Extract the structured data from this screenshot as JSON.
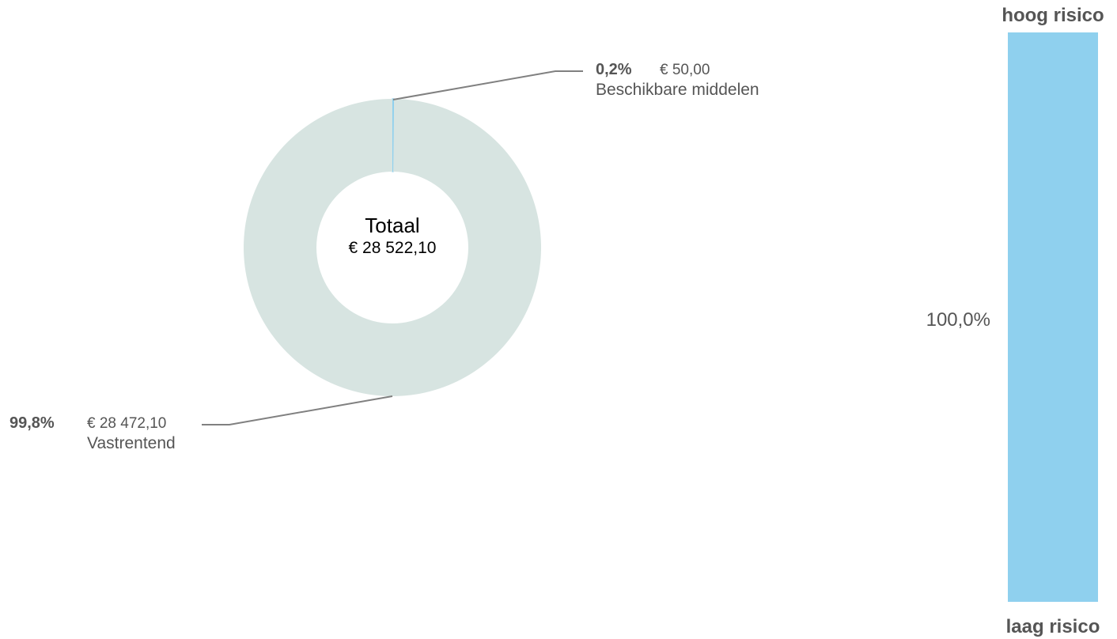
{
  "chart_data": [
    {
      "type": "pie",
      "donut": true,
      "center_label": {
        "title": "Totaal",
        "value": "€ 28 522,10"
      },
      "slices": [
        {
          "name": "Beschikbare middelen",
          "percent_label": "0,2%",
          "amount_label": "€ 50,00",
          "value": 50.0,
          "color": "#8fd0ee"
        },
        {
          "name": "Vastrentend",
          "percent_label": "99,8%",
          "amount_label": "€ 28 472,10",
          "value": 28472.1,
          "color": "#d7e4e1"
        }
      ]
    },
    {
      "type": "bar",
      "stacked": true,
      "top_label": "hoog risico",
      "bottom_label": "laag risico",
      "segments": [
        {
          "label": "100,0%",
          "value": 100.0,
          "color": "#8fd0ee"
        }
      ],
      "ylim": [
        0,
        100
      ]
    }
  ],
  "colors": {
    "leader_line": "#808080",
    "label_text": "#555555",
    "risk_text": "#555555"
  }
}
